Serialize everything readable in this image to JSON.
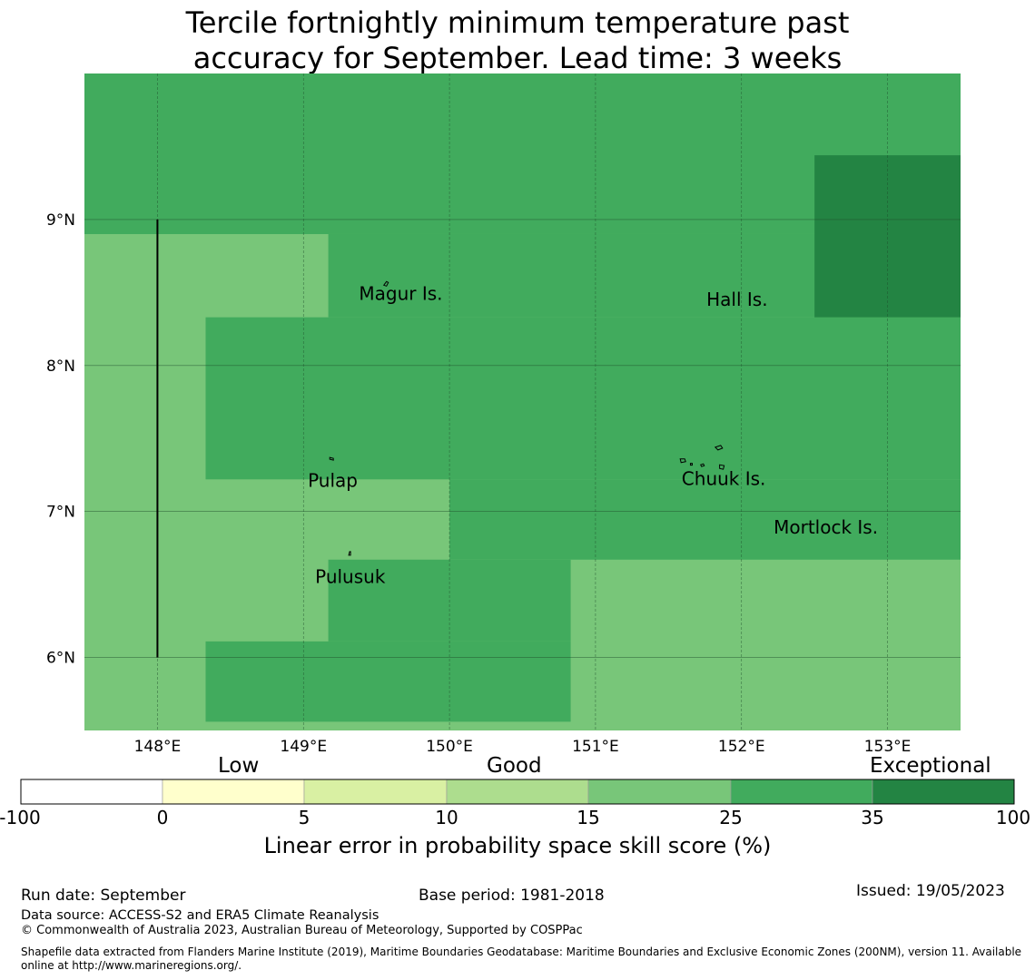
{
  "title": {
    "line1": "Tercile fortnightly minimum temperature past",
    "line2": "accuracy for September. Lead time: 3 weeks"
  },
  "map": {
    "lon_range": [
      147.5,
      153.5
    ],
    "lat_range": [
      5.5,
      10.0
    ],
    "lon_ticks": [
      {
        "value": 148,
        "label": "148°E"
      },
      {
        "value": 149,
        "label": "149°E"
      },
      {
        "value": 150,
        "label": "150°E"
      },
      {
        "value": 151,
        "label": "151°E"
      },
      {
        "value": 152,
        "label": "152°E"
      },
      {
        "value": 153,
        "label": "153°E"
      }
    ],
    "lat_ticks": [
      {
        "value": 9,
        "label": "9°N"
      },
      {
        "value": 8,
        "label": "8°N"
      },
      {
        "value": 7,
        "label": "7°N"
      },
      {
        "value": 6,
        "label": "6°N"
      }
    ],
    "grid": true,
    "skill_regions": [
      {
        "lon": [
          147.5,
          153.5
        ],
        "lat": [
          5.5,
          10.0
        ],
        "class": "15-25",
        "color": "#78c679"
      },
      {
        "lon": [
          147.5,
          153.5
        ],
        "lat": [
          8.9,
          10.0
        ],
        "class": "25-35",
        "color": "#41ab5d"
      },
      {
        "lon": [
          149.17,
          153.5
        ],
        "lat": [
          8.33,
          8.9
        ],
        "class": "25-35",
        "color": "#41ab5d"
      },
      {
        "lon": [
          148.33,
          153.5
        ],
        "lat": [
          7.22,
          8.33
        ],
        "class": "25-35",
        "color": "#41ab5d"
      },
      {
        "lon": [
          150.0,
          153.5
        ],
        "lat": [
          6.67,
          7.22
        ],
        "class": "25-35",
        "color": "#41ab5d"
      },
      {
        "lon": [
          149.17,
          150.83
        ],
        "lat": [
          6.11,
          6.67
        ],
        "class": "25-35",
        "color": "#41ab5d"
      },
      {
        "lon": [
          148.33,
          150.83
        ],
        "lat": [
          5.56,
          6.11
        ],
        "class": "25-35",
        "color": "#41ab5d"
      },
      {
        "lon": [
          152.5,
          153.5
        ],
        "lat": [
          8.33,
          9.44
        ],
        "class": "35-100",
        "color": "#238443"
      }
    ],
    "boundary_line": {
      "lon": 148.0,
      "lat": [
        6.0,
        9.0
      ]
    },
    "places": [
      {
        "name": "Magur Is.",
        "lon": 149.38,
        "lat": 8.45
      },
      {
        "name": "Hall Is.",
        "lon": 151.76,
        "lat": 8.41
      },
      {
        "name": "Pulap",
        "lon": 149.03,
        "lat": 7.17
      },
      {
        "name": "Chuuk Is.",
        "lon": 151.59,
        "lat": 7.18
      },
      {
        "name": "Mortlock Is.",
        "lon": 152.22,
        "lat": 6.85
      },
      {
        "name": "Pulusuk",
        "lon": 149.08,
        "lat": 6.51
      }
    ]
  },
  "colorbar": {
    "categories": [
      {
        "label": "Low",
        "value": 0
      },
      {
        "label": "Good",
        "value": 10
      },
      {
        "label": "Exceptional",
        "value": 35
      }
    ],
    "ticks": [
      "-100",
      "0",
      "5",
      "10",
      "15",
      "25",
      "35",
      "100"
    ],
    "colors": [
      "#ffffff",
      "#ffffcc",
      "#d9f0a3",
      "#addd8e",
      "#78c679",
      "#41ab5d",
      "#238443"
    ],
    "label": "Linear error in probability space skill score (%)"
  },
  "footer": {
    "run_date": "Run date: September",
    "base_period": "Base period: 1981-2018",
    "issued": "Issued: 19/05/2023",
    "data_source": "Data source: ACCESS-S2 and ERA5 Climate Reanalysis",
    "copyright": "© Commonwealth of Australia 2023, Australian Bureau of Meteorology, Supported by COSPPac",
    "shapefile_line1": "Shapefile data extracted from Flanders Marine Institute (2019), Maritime Boundaries Geodatabase: Maritime Boundaries and Exclusive Economic Zones (200NM), version 11. Available",
    "shapefile_line2": "online at http://www.marineregions.org/."
  }
}
